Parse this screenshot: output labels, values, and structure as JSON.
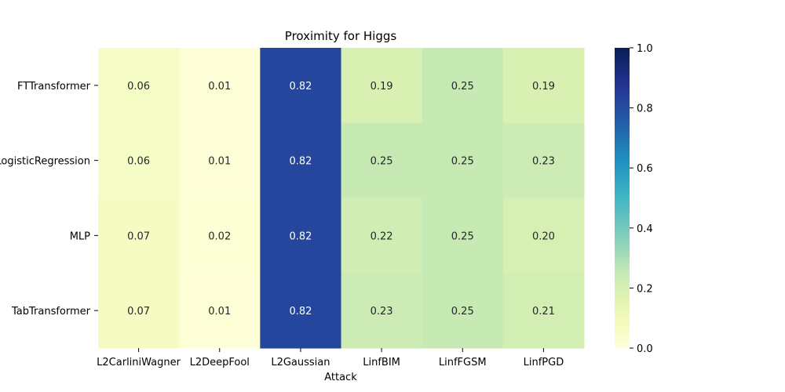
{
  "chart_data": {
    "type": "heatmap",
    "title": "Proximity for Higgs",
    "xlabel": "Attack",
    "ylabel": "",
    "columns": [
      "L2CarliniWagner",
      "L2DeepFool",
      "L2Gaussian",
      "LinfBIM",
      "LinfFGSM",
      "LinfPGD"
    ],
    "rows": [
      "FTTransformer",
      "LogisticRegression",
      "MLP",
      "TabTransformer"
    ],
    "values": [
      [
        0.06,
        0.01,
        0.82,
        0.19,
        0.25,
        0.19
      ],
      [
        0.06,
        0.01,
        0.82,
        0.25,
        0.25,
        0.23
      ],
      [
        0.07,
        0.02,
        0.82,
        0.22,
        0.25,
        0.2
      ],
      [
        0.07,
        0.01,
        0.82,
        0.23,
        0.25,
        0.21
      ]
    ],
    "value_labels": [
      [
        "0.06",
        "0.01",
        "0.82",
        "0.19",
        "0.25",
        "0.19"
      ],
      [
        "0.06",
        "0.01",
        "0.82",
        "0.25",
        "0.25",
        "0.23"
      ],
      [
        "0.07",
        "0.02",
        "0.82",
        "0.22",
        "0.25",
        "0.20"
      ],
      [
        "0.07",
        "0.01",
        "0.82",
        "0.23",
        "0.25",
        "0.21"
      ]
    ],
    "colormap": "YlGnBu",
    "vmin": 0.0,
    "vmax": 1.0,
    "colorbar_ticks": [
      "0.0",
      "0.2",
      "0.4",
      "0.6",
      "0.8",
      "1.0"
    ],
    "colorbar_tick_values": [
      0.0,
      0.2,
      0.4,
      0.6,
      0.8,
      1.0
    ]
  }
}
